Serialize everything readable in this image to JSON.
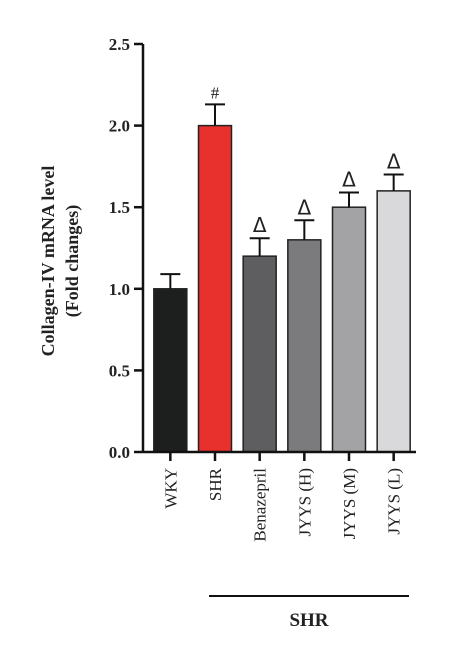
{
  "chart_data": {
    "type": "bar",
    "ylabel_line1": "Collagen-IV mRNA level",
    "ylabel_line2": "(Fold changes)",
    "ylim": [
      0,
      2.5
    ],
    "yticks": [
      "0.0",
      "0.5",
      "1.0",
      "1.5",
      "2.0",
      "2.5"
    ],
    "categories": [
      "WKY",
      "SHR",
      "Benazepril",
      "JYYS (H)",
      "JYYS (M)",
      "JYYS (L)"
    ],
    "values": [
      1.0,
      2.0,
      1.2,
      1.3,
      1.5,
      1.6
    ],
    "errors": [
      0.09,
      0.13,
      0.11,
      0.12,
      0.09,
      0.1
    ],
    "annotations": [
      "",
      "#",
      "Δ",
      "Δ",
      "Δ",
      "Δ"
    ],
    "colors": [
      "#1c1f1d",
      "#e8302c",
      "#5e5e60",
      "#7b7b7d",
      "#a3a2a4",
      "#d9d8da"
    ],
    "group_label": "SHR",
    "grid": false
  }
}
